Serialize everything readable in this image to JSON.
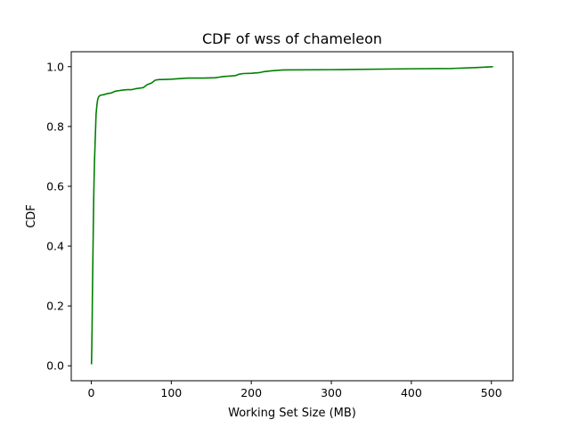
{
  "chart_data": {
    "type": "line",
    "title": "CDF of wss of chameleon",
    "xlabel": "Working Set Size (MB)",
    "ylabel": "CDF",
    "xlim": [
      -25,
      527
    ],
    "ylim": [
      -0.05,
      1.05
    ],
    "xticks": [
      0,
      100,
      200,
      300,
      400,
      500
    ],
    "yticks": [
      0.0,
      0.2,
      0.4,
      0.6,
      0.8,
      1.0
    ],
    "xtick_labels": [
      "0",
      "100",
      "200",
      "300",
      "400",
      "500"
    ],
    "ytick_labels": [
      "0.0",
      "0.2",
      "0.4",
      "0.6",
      "0.8",
      "1.0"
    ],
    "grid": false,
    "series": [
      {
        "color": "#008000",
        "x": [
          0.3,
          0.6,
          1.0,
          1.5,
          2.0,
          2.5,
          3.0,
          3.5,
          4.0,
          4.5,
          5.0,
          5.5,
          6.0,
          7.0,
          8.0,
          9.0,
          10.0,
          12.0,
          15.0,
          20.0,
          25.0,
          30.0,
          35.0,
          40.0,
          45.0,
          50.0,
          55.0,
          60.0,
          65.0,
          70.0,
          75.0,
          80.0,
          85.0,
          90.0,
          100.0,
          110.0,
          120.0,
          140.0,
          155.0,
          160.0,
          165.0,
          170.0,
          180.0,
          185.0,
          190.0,
          200.0,
          210.0,
          215.0,
          225.0,
          240.0,
          300.0,
          400.0,
          450.0,
          480.0,
          502.0
        ],
        "y": [
          0.005,
          0.05,
          0.12,
          0.25,
          0.35,
          0.45,
          0.55,
          0.62,
          0.68,
          0.72,
          0.76,
          0.8,
          0.84,
          0.87,
          0.89,
          0.898,
          0.902,
          0.905,
          0.906,
          0.91,
          0.912,
          0.918,
          0.92,
          0.922,
          0.923,
          0.923,
          0.926,
          0.928,
          0.93,
          0.94,
          0.945,
          0.955,
          0.957,
          0.957,
          0.958,
          0.96,
          0.962,
          0.962,
          0.963,
          0.965,
          0.967,
          0.968,
          0.97,
          0.975,
          0.977,
          0.978,
          0.98,
          0.983,
          0.986,
          0.989,
          0.99,
          0.993,
          0.994,
          0.997,
          1.0
        ]
      }
    ]
  }
}
